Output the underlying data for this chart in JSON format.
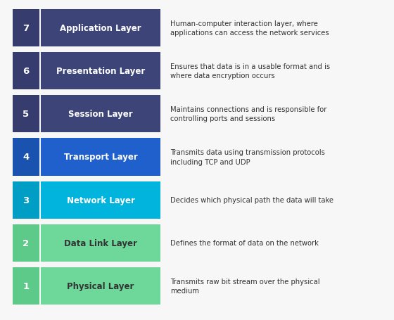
{
  "background_color": "#f7f7f7",
  "layers": [
    {
      "number": 7,
      "name": "Application Layer",
      "description": "Human-computer interaction layer, where\napplications can access the network services",
      "num_color": "#363d6e",
      "bar_color": "#3d4478",
      "text_color": "#ffffff",
      "desc_color": "#333333"
    },
    {
      "number": 6,
      "name": "Presentation Layer",
      "description": "Ensures that data is in a usable format and is\nwhere data encryption occurs",
      "num_color": "#363d6e",
      "bar_color": "#3d4478",
      "text_color": "#ffffff",
      "desc_color": "#333333"
    },
    {
      "number": 5,
      "name": "Session Layer",
      "description": "Maintains connections and is responsible for\ncontrolling ports and sessions",
      "num_color": "#363d6e",
      "bar_color": "#3d4478",
      "text_color": "#ffffff",
      "desc_color": "#333333"
    },
    {
      "number": 4,
      "name": "Transport Layer",
      "description": "Transmits data using transmission protocols\nincluding TCP and UDP",
      "num_color": "#1a52b0",
      "bar_color": "#2060cc",
      "text_color": "#ffffff",
      "desc_color": "#333333"
    },
    {
      "number": 3,
      "name": "Network Layer",
      "description": "Decides which physical path the data will take",
      "num_color": "#009ec5",
      "bar_color": "#00b4dd",
      "text_color": "#ffffff",
      "desc_color": "#333333"
    },
    {
      "number": 2,
      "name": "Data Link Layer",
      "description": "Defines the format of data on the network",
      "num_color": "#5dca8a",
      "bar_color": "#6dd89a",
      "text_color": "#333333",
      "desc_color": "#333333"
    },
    {
      "number": 1,
      "name": "Physical Layer",
      "description": "Transmits raw bit stream over the physical\nmedium",
      "num_color": "#5dca8a",
      "bar_color": "#6dd89a",
      "text_color": "#333333",
      "desc_color": "#333333"
    }
  ],
  "fig_width": 5.6,
  "fig_height": 4.56,
  "dpi": 100
}
